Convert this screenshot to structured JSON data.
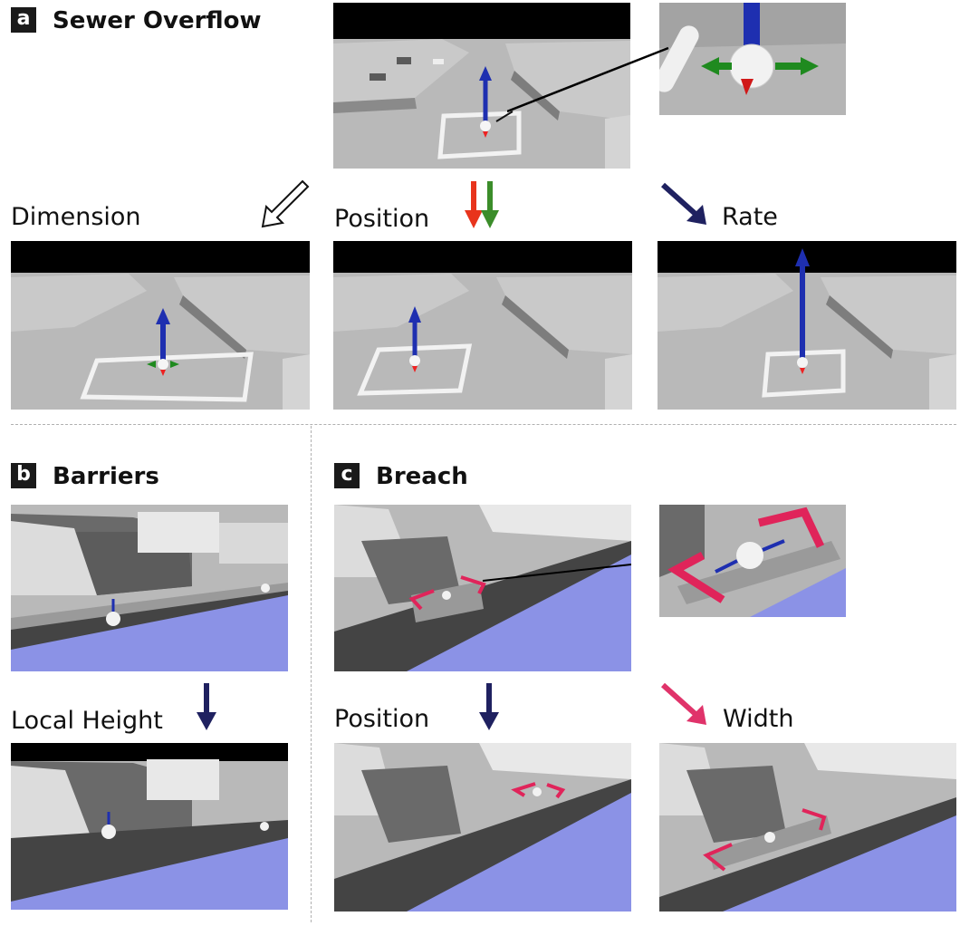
{
  "sections": {
    "a": {
      "badge": "a",
      "title": "Sewer Overflow"
    },
    "b": {
      "badge": "b",
      "title": "Barriers"
    },
    "c": {
      "badge": "c",
      "title": "Breach"
    }
  },
  "labels": {
    "dimension": "Dimension",
    "position_a": "Position",
    "rate": "Rate",
    "local_height": "Local Height",
    "position_c": "Position",
    "width": "Width"
  },
  "colors": {
    "arrow_navy": "#1f2160",
    "arrow_red": "#e8341c",
    "arrow_green": "#3b8d2a",
    "arrow_pink": "#e0336a",
    "handle_blue": "#1e2fb0",
    "handle_green": "#1f8a1f",
    "breach_pink": "#e0245a",
    "water": "#8b92e6",
    "sky": "#000000",
    "ground": "#b8b8b8"
  },
  "icons": {
    "dimension_arrow": "hollow-arrow-icon",
    "position_arrows": "red-green-down-arrows-icon",
    "rate_arrow": "navy-diagonal-arrow-icon",
    "local_height_arrow": "navy-down-arrow-icon",
    "position_c_arrow": "navy-down-arrow-icon",
    "width_arrow": "pink-diagonal-arrow-icon"
  }
}
